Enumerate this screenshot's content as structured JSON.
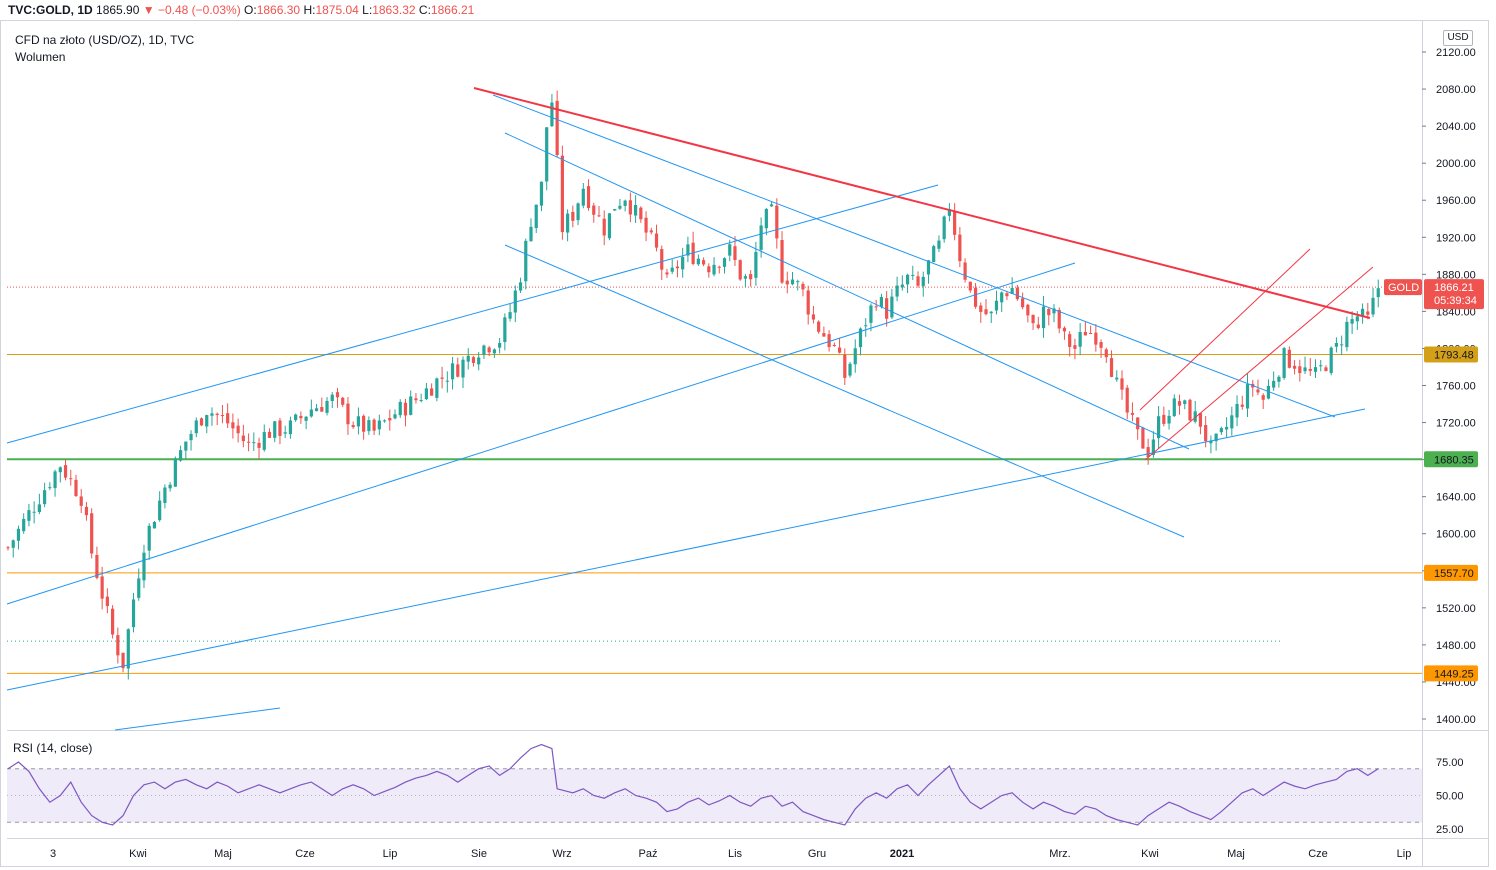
{
  "header": {
    "symbol": "TVC:GOLD, 1D",
    "price": "1865.90",
    "change": "▼ −0.48 (−0.03%)",
    "o_label": "O:",
    "o": "1866.30",
    "h_label": "H:",
    "h": "1875.04",
    "l_label": "L:",
    "l": "1863.32",
    "c_label": "C:",
    "c": "1866.21"
  },
  "legend": {
    "title": "CFD na złoto (USD/OZ), 1D, TVC",
    "volume": "Wolumen"
  },
  "currency": "USD",
  "rsi_label": "RSI (14, close)",
  "colors": {
    "up": "#26a69a",
    "down": "#ef5350",
    "trend": "#2196f3",
    "resistance": "#f23645",
    "support_green": "#4caf50",
    "level_orange": "#ff9800",
    "level_yellow": "#d4a017",
    "rsi": "#7e57c2"
  },
  "price_badge": {
    "label": "GOLD",
    "value": "1866.21",
    "timer": "05:39:34"
  },
  "levels": [
    {
      "value": 1793.48,
      "label": "1793.48",
      "color": "#d4a017"
    },
    {
      "value": 1680.35,
      "label": "1680.35",
      "color": "#4caf50"
    },
    {
      "value": 1557.7,
      "label": "1557.70",
      "color": "#ff9800"
    },
    {
      "value": 1449.25,
      "label": "1449.25",
      "color": "#ff9800"
    }
  ],
  "chart_data": {
    "type": "candlestick",
    "y_axis_ticks": [
      "2120.00",
      "2080.00",
      "2040.00",
      "2000.00",
      "1960.00",
      "1920.00",
      "1880.00",
      "1840.00",
      "1800.00",
      "1760.00",
      "1720.00",
      "1680.00",
      "1640.00",
      "1600.00",
      "1560.00",
      "1520.00",
      "1480.00",
      "1440.00",
      "1400.00"
    ],
    "ylim": [
      1388,
      2140
    ],
    "x_axis_labels": [
      "3",
      "Kwi",
      "Maj",
      "Cze",
      "Lip",
      "Sie",
      "Wrz",
      "Paź",
      "Lis",
      "Gru",
      "2021",
      "Mrz.",
      "Kwi",
      "Maj",
      "Cze",
      "Lip"
    ],
    "close_path": [
      [
        0,
        1585
      ],
      [
        6,
        1640
      ],
      [
        10,
        1675
      ],
      [
        14,
        1640
      ],
      [
        16,
        1580
      ],
      [
        20,
        1490
      ],
      [
        22,
        1460
      ],
      [
        24,
        1530
      ],
      [
        26,
        1590
      ],
      [
        30,
        1650
      ],
      [
        34,
        1700
      ],
      [
        38,
        1735
      ],
      [
        42,
        1720
      ],
      [
        46,
        1695
      ],
      [
        50,
        1710
      ],
      [
        54,
        1715
      ],
      [
        58,
        1735
      ],
      [
        62,
        1745
      ],
      [
        66,
        1720
      ],
      [
        70,
        1710
      ],
      [
        74,
        1730
      ],
      [
        78,
        1745
      ],
      [
        82,
        1765
      ],
      [
        86,
        1780
      ],
      [
        90,
        1800
      ],
      [
        94,
        1810
      ],
      [
        96,
        1840
      ],
      [
        98,
        1880
      ],
      [
        100,
        1940
      ],
      [
        102,
        1975
      ],
      [
        103,
        2040
      ],
      [
        104,
        2067
      ],
      [
        106,
        1930
      ],
      [
        108,
        1945
      ],
      [
        110,
        1975
      ],
      [
        112,
        1950
      ],
      [
        114,
        1930
      ],
      [
        116,
        1955
      ],
      [
        118,
        1965
      ],
      [
        120,
        1945
      ],
      [
        124,
        1905
      ],
      [
        126,
        1870
      ],
      [
        128,
        1890
      ],
      [
        130,
        1905
      ],
      [
        134,
        1890
      ],
      [
        138,
        1905
      ],
      [
        140,
        1880
      ],
      [
        142,
        1870
      ],
      [
        144,
        1935
      ],
      [
        146,
        1945
      ],
      [
        148,
        1880
      ],
      [
        150,
        1875
      ],
      [
        152,
        1860
      ],
      [
        154,
        1830
      ],
      [
        156,
        1815
      ],
      [
        158,
        1800
      ],
      [
        160,
        1770
      ],
      [
        162,
        1800
      ],
      [
        164,
        1830
      ],
      [
        166,
        1855
      ],
      [
        168,
        1840
      ],
      [
        170,
        1860
      ],
      [
        172,
        1875
      ],
      [
        174,
        1865
      ],
      [
        176,
        1890
      ],
      [
        178,
        1910
      ],
      [
        180,
        1955
      ],
      [
        182,
        1900
      ],
      [
        184,
        1860
      ],
      [
        186,
        1840
      ],
      [
        188,
        1835
      ],
      [
        190,
        1860
      ],
      [
        192,
        1865
      ],
      [
        194,
        1845
      ],
      [
        196,
        1820
      ],
      [
        198,
        1840
      ],
      [
        200,
        1835
      ],
      [
        202,
        1810
      ],
      [
        204,
        1800
      ],
      [
        206,
        1820
      ],
      [
        208,
        1815
      ],
      [
        210,
        1800
      ],
      [
        212,
        1760
      ],
      [
        214,
        1730
      ],
      [
        216,
        1705
      ],
      [
        218,
        1690
      ],
      [
        220,
        1720
      ],
      [
        222,
        1735
      ],
      [
        224,
        1740
      ],
      [
        226,
        1730
      ],
      [
        228,
        1720
      ],
      [
        230,
        1690
      ],
      [
        232,
        1705
      ],
      [
        234,
        1725
      ],
      [
        236,
        1745
      ],
      [
        238,
        1760
      ],
      [
        240,
        1745
      ],
      [
        242,
        1770
      ],
      [
        244,
        1790
      ],
      [
        246,
        1785
      ],
      [
        248,
        1775
      ],
      [
        250,
        1770
      ],
      [
        252,
        1785
      ],
      [
        254,
        1800
      ],
      [
        256,
        1825
      ],
      [
        258,
        1835
      ],
      [
        260,
        1830
      ],
      [
        262,
        1866
      ]
    ],
    "rsi_path": [
      [
        0,
        70
      ],
      [
        2,
        75
      ],
      [
        4,
        68
      ],
      [
        6,
        55
      ],
      [
        8,
        45
      ],
      [
        10,
        50
      ],
      [
        12,
        60
      ],
      [
        14,
        45
      ],
      [
        16,
        35
      ],
      [
        18,
        30
      ],
      [
        20,
        28
      ],
      [
        22,
        35
      ],
      [
        24,
        50
      ],
      [
        26,
        58
      ],
      [
        28,
        60
      ],
      [
        30,
        55
      ],
      [
        32,
        60
      ],
      [
        34,
        62
      ],
      [
        36,
        58
      ],
      [
        38,
        55
      ],
      [
        40,
        60
      ],
      [
        42,
        57
      ],
      [
        44,
        52
      ],
      [
        46,
        55
      ],
      [
        48,
        58
      ],
      [
        50,
        55
      ],
      [
        52,
        52
      ],
      [
        54,
        55
      ],
      [
        56,
        58
      ],
      [
        58,
        60
      ],
      [
        60,
        55
      ],
      [
        62,
        50
      ],
      [
        64,
        55
      ],
      [
        66,
        58
      ],
      [
        68,
        55
      ],
      [
        70,
        50
      ],
      [
        72,
        53
      ],
      [
        74,
        56
      ],
      [
        76,
        60
      ],
      [
        78,
        63
      ],
      [
        80,
        65
      ],
      [
        82,
        68
      ],
      [
        84,
        65
      ],
      [
        86,
        60
      ],
      [
        88,
        65
      ],
      [
        90,
        70
      ],
      [
        92,
        72
      ],
      [
        94,
        65
      ],
      [
        96,
        70
      ],
      [
        98,
        78
      ],
      [
        100,
        85
      ],
      [
        102,
        88
      ],
      [
        104,
        85
      ],
      [
        105,
        55
      ],
      [
        108,
        52
      ],
      [
        110,
        55
      ],
      [
        112,
        50
      ],
      [
        114,
        48
      ],
      [
        116,
        52
      ],
      [
        118,
        55
      ],
      [
        120,
        50
      ],
      [
        122,
        48
      ],
      [
        124,
        45
      ],
      [
        126,
        38
      ],
      [
        128,
        40
      ],
      [
        130,
        45
      ],
      [
        132,
        48
      ],
      [
        134,
        43
      ],
      [
        136,
        46
      ],
      [
        138,
        50
      ],
      [
        140,
        45
      ],
      [
        142,
        42
      ],
      [
        144,
        48
      ],
      [
        146,
        50
      ],
      [
        148,
        42
      ],
      [
        150,
        45
      ],
      [
        152,
        38
      ],
      [
        154,
        35
      ],
      [
        156,
        32
      ],
      [
        158,
        30
      ],
      [
        160,
        28
      ],
      [
        162,
        40
      ],
      [
        164,
        48
      ],
      [
        166,
        52
      ],
      [
        168,
        48
      ],
      [
        170,
        55
      ],
      [
        172,
        58
      ],
      [
        174,
        50
      ],
      [
        176,
        58
      ],
      [
        178,
        65
      ],
      [
        180,
        72
      ],
      [
        182,
        55
      ],
      [
        184,
        45
      ],
      [
        186,
        40
      ],
      [
        188,
        45
      ],
      [
        190,
        50
      ],
      [
        192,
        52
      ],
      [
        194,
        45
      ],
      [
        196,
        40
      ],
      [
        198,
        45
      ],
      [
        200,
        42
      ],
      [
        202,
        38
      ],
      [
        204,
        36
      ],
      [
        206,
        42
      ],
      [
        208,
        40
      ],
      [
        210,
        35
      ],
      [
        212,
        32
      ],
      [
        214,
        30
      ],
      [
        216,
        28
      ],
      [
        218,
        35
      ],
      [
        220,
        40
      ],
      [
        222,
        45
      ],
      [
        224,
        42
      ],
      [
        226,
        38
      ],
      [
        228,
        35
      ],
      [
        230,
        32
      ],
      [
        232,
        38
      ],
      [
        234,
        45
      ],
      [
        236,
        52
      ],
      [
        238,
        55
      ],
      [
        240,
        50
      ],
      [
        242,
        55
      ],
      [
        244,
        60
      ],
      [
        246,
        57
      ],
      [
        248,
        55
      ],
      [
        250,
        58
      ],
      [
        252,
        60
      ],
      [
        254,
        62
      ],
      [
        256,
        68
      ],
      [
        258,
        70
      ],
      [
        260,
        65
      ],
      [
        262,
        70
      ]
    ],
    "rsi_ticks": [
      "75.00",
      "50.00",
      "25.00"
    ],
    "rsi_ylim": [
      20,
      95
    ]
  }
}
